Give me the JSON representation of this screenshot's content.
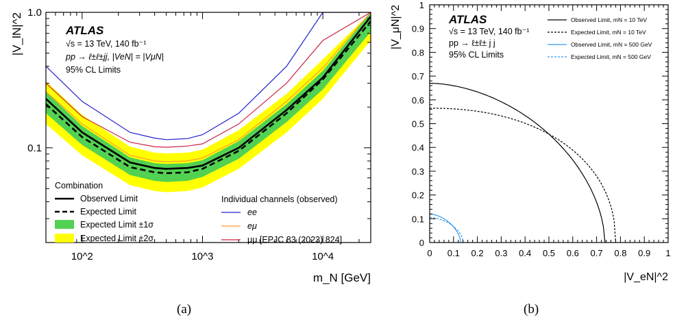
{
  "chart_data": [
    {
      "type": "line",
      "panel_label": "(a)",
      "xlabel": "m_N [GeV]",
      "ylabel": "|V_lN|^2",
      "xscale": "log",
      "yscale": "log",
      "xlim": [
        50,
        25000
      ],
      "ylim": [
        0.02,
        1.0
      ],
      "x_tick_labels": [
        "10^2",
        "10^3",
        "10^4"
      ],
      "y_tick_labels": [
        "0.1",
        "1.0"
      ],
      "annotations": {
        "experiment": "ATLAS",
        "energy": "√s = 13 TeV, 140 fb⁻¹",
        "process": "pp → ℓ±ℓ±jj, |VeN| = |VμN|",
        "cl": "95% CL Limits"
      },
      "legend_left": {
        "title": "Combination",
        "observed": "Observed Limit",
        "expected": "Expected Limit",
        "band1": "Expected Limit ±1σ",
        "band2": "Expected Limit ±2σ"
      },
      "legend_right": {
        "title": "Individual channels (observed)",
        "ee": "ee",
        "emu": "eμ",
        "mumu": "μμ [EPJC 83 (2023) 824]"
      },
      "colors": {
        "band1": "#52d152",
        "band2": "#ffff00",
        "ee": "#1f1fcc",
        "emu": "#ff9a33",
        "mumu": "#cc2244"
      },
      "x": [
        50,
        100,
        250,
        400,
        500,
        750,
        1000,
        2000,
        5000,
        10000,
        25000
      ],
      "series": [
        {
          "key": "observed",
          "values": [
            0.23,
            0.13,
            0.078,
            0.071,
            0.07,
            0.071,
            0.074,
            0.1,
            0.19,
            0.33,
            0.93
          ]
        },
        {
          "key": "expected",
          "values": [
            0.21,
            0.12,
            0.072,
            0.066,
            0.065,
            0.066,
            0.07,
            0.095,
            0.18,
            0.32,
            0.86
          ]
        },
        {
          "key": "band1_low",
          "values": [
            0.18,
            0.105,
            0.063,
            0.057,
            0.056,
            0.057,
            0.061,
            0.083,
            0.155,
            0.27,
            0.72
          ]
        },
        {
          "key": "band1_high",
          "values": [
            0.26,
            0.145,
            0.085,
            0.077,
            0.076,
            0.077,
            0.081,
            0.112,
            0.21,
            0.37,
            1.0
          ]
        },
        {
          "key": "band2_low",
          "values": [
            0.15,
            0.088,
            0.053,
            0.048,
            0.047,
            0.048,
            0.051,
            0.07,
            0.13,
            0.23,
            0.62
          ]
        },
        {
          "key": "band2_high",
          "values": [
            0.31,
            0.175,
            0.102,
            0.092,
            0.091,
            0.092,
            0.097,
            0.135,
            0.25,
            0.45,
            1.0
          ]
        },
        {
          "key": "ee",
          "values": [
            0.4,
            0.22,
            0.13,
            0.118,
            0.115,
            0.117,
            0.125,
            0.18,
            0.4,
            1.0,
            1.0
          ]
        },
        {
          "key": "emu",
          "values": [
            0.26,
            0.15,
            0.088,
            0.08,
            0.079,
            0.08,
            0.084,
            0.115,
            0.22,
            0.39,
            1.0
          ]
        },
        {
          "key": "mumu",
          "values": [
            0.3,
            0.17,
            0.11,
            0.102,
            0.101,
            0.103,
            0.107,
            0.15,
            0.3,
            0.62,
            1.0
          ]
        }
      ]
    },
    {
      "type": "line",
      "panel_label": "(b)",
      "xlabel": "|V_eN|^2",
      "ylabel": "|V_μN|^2",
      "xlim": [
        0,
        1
      ],
      "ylim": [
        0,
        1
      ],
      "x_tick_labels": [
        "0",
        "0.1",
        "0.2",
        "0.3",
        "0.4",
        "0.5",
        "0.6",
        "0.7",
        "0.8",
        "0.9",
        "1"
      ],
      "y_tick_labels": [
        "0",
        "0.1",
        "0.2",
        "0.3",
        "0.4",
        "0.5",
        "0.6",
        "0.7",
        "0.8",
        "0.9",
        "1"
      ],
      "annotations": {
        "experiment": "ATLAS",
        "energy": "√s = 13 TeV, 140 fb⁻¹",
        "process": "pp → ℓ±ℓ± j j",
        "cl": "95% CL Limits"
      },
      "legend": [
        {
          "label": "Observed Limit, mN = 10 TeV",
          "color": "#000000",
          "dash": false
        },
        {
          "label": "Expected Limit, mN = 10 TeV",
          "color": "#000000",
          "dash": true
        },
        {
          "label": "Observed Limit, mN = 500 GeV",
          "color": "#3399ee",
          "dash": false
        },
        {
          "label": "Expected Limit, mN = 500 GeV",
          "color": "#3399ee",
          "dash": true
        }
      ],
      "curves": [
        {
          "label": "Observed Limit, mN = 10 TeV",
          "a": 0.735,
          "b": 0.67,
          "p": 1.8
        },
        {
          "label": "Expected Limit, mN = 10 TeV",
          "a": 0.78,
          "b": 0.565,
          "p": 2.2
        },
        {
          "label": "Observed Limit, mN = 500 GeV",
          "a": 0.13,
          "b": 0.12,
          "p": 1.7
        },
        {
          "label": "Expected Limit, mN = 500 GeV",
          "a": 0.14,
          "b": 0.105,
          "p": 1.8
        }
      ]
    }
  ]
}
